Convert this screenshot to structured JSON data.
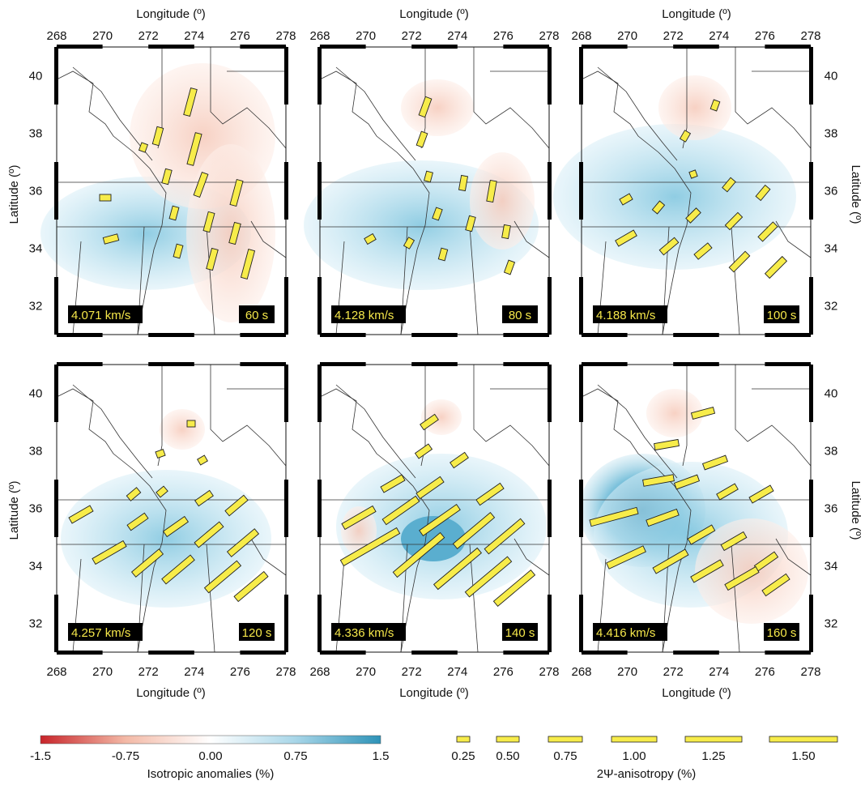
{
  "axes": {
    "longitude_label": "Longitude (º)",
    "latitude_label": "Latitude (º)",
    "lon_ticks": [
      "268",
      "270",
      "272",
      "274",
      "276",
      "278"
    ],
    "lat_ticks": [
      "32",
      "34",
      "36",
      "38",
      "40"
    ],
    "lon_range": [
      268,
      278
    ],
    "lat_range": [
      31,
      41
    ]
  },
  "panels": [
    {
      "speed": "4.071 km/s",
      "period": "60 s"
    },
    {
      "speed": "4.128 km/s",
      "period": "80 s"
    },
    {
      "speed": "4.188 km/s",
      "period": "100 s"
    },
    {
      "speed": "4.257 km/s",
      "period": "120 s"
    },
    {
      "speed": "4.336 km/s",
      "period": "140 s"
    },
    {
      "speed": "4.416 km/s",
      "period": "160 s"
    }
  ],
  "isotropic_legend": {
    "title": "Isotropic anomalies (%)",
    "ticks": [
      "-1.5",
      "-0.75",
      "0.00",
      "0.75",
      "1.5"
    ],
    "colors": [
      "#c8242a",
      "#fbe3dc",
      "#ffffff",
      "#d4ecf5",
      "#2e93b8"
    ]
  },
  "anisotropy_legend": {
    "title": "2Ψ-anisotropy (%)",
    "ticks": [
      "0.25",
      "0.50",
      "0.75",
      "1.00",
      "1.25",
      "1.50"
    ],
    "fill_color": "#f7ec4a"
  }
}
